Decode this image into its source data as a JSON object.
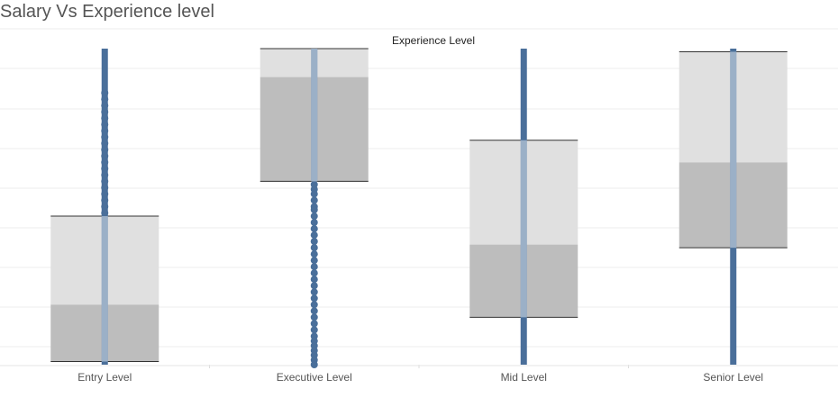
{
  "title": "Salary Vs Experience level",
  "chart_data": {
    "type": "box",
    "header": "Experience Level",
    "categories": [
      "Entry Level",
      "Executive Level",
      "Mid Level",
      "Senior Level"
    ],
    "ylim": [
      0,
      1
    ],
    "grid": true,
    "boxes": [
      {
        "category": "Entry Level",
        "q1": 0.01,
        "median": 0.19,
        "q3": 0.47,
        "whisker_low": 0.0,
        "whisker_high": 1.0
      },
      {
        "category": "Executive Level",
        "q1": 0.58,
        "median": 0.91,
        "q3": 1.0,
        "whisker_low": 0.0,
        "whisker_high": 1.0
      },
      {
        "category": "Mid Level",
        "q1": 0.15,
        "median": 0.38,
        "q3": 0.71,
        "whisker_low": 0.0,
        "whisker_high": 1.0
      },
      {
        "category": "Senior Level",
        "q1": 0.37,
        "median": 0.64,
        "q3": 0.99,
        "whisker_low": 0.0,
        "whisker_high": 1.0
      }
    ],
    "points": [
      {
        "category": "Entry Level",
        "style": "dense",
        "values": [
          0.86,
          0.84,
          0.82,
          0.8,
          0.78,
          0.76,
          0.74,
          0.72,
          0.7,
          0.68,
          0.66,
          0.64,
          0.62,
          0.6,
          0.58,
          0.56,
          0.54,
          0.52,
          0.5,
          0.48
        ]
      },
      {
        "category": "Executive Level",
        "style": "dots",
        "values": [
          0.57,
          0.555,
          0.54,
          0.52,
          0.5,
          0.49,
          0.47,
          0.45,
          0.43,
          0.41,
          0.39,
          0.37,
          0.35,
          0.33,
          0.31,
          0.29,
          0.27,
          0.25,
          0.23,
          0.21,
          0.19,
          0.17,
          0.15,
          0.13,
          0.11,
          0.09,
          0.075,
          0.06,
          0.045,
          0.03,
          0.015,
          0.0
        ]
      },
      {
        "category": "Mid Level",
        "style": "dense",
        "values": []
      },
      {
        "category": "Senior Level",
        "style": "dense",
        "values": []
      }
    ],
    "colors": {
      "point": "#4a6f9a",
      "box_upper": "#e0e0e0",
      "box_lower": "#bdbdbd",
      "whisker_line": "#333333",
      "grid": "#ececec",
      "axis_text": "#555555"
    }
  }
}
